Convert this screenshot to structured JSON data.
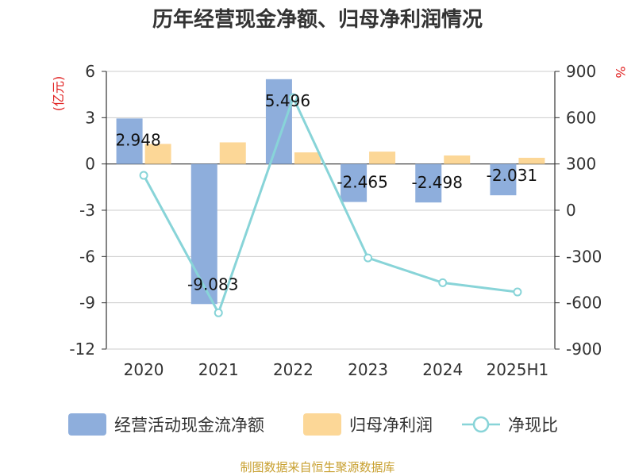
{
  "chart_data": {
    "type": "bar",
    "title": "历年经营现金净额、归母净利润情况",
    "categories": [
      "2020",
      "2021",
      "2022",
      "2023",
      "2024",
      "2025H1"
    ],
    "series": [
      {
        "name": "经营活动现金流净额",
        "type": "bar",
        "axis": "left",
        "color": "#8eaedc",
        "values": [
          2.948,
          -9.083,
          5.496,
          -2.465,
          -2.498,
          -2.031
        ],
        "labels": [
          "2.948",
          "-9.083",
          "5.496",
          "-2.465",
          "-2.498",
          "-2.031"
        ]
      },
      {
        "name": "归母净利润",
        "type": "bar",
        "axis": "left",
        "color": "#fcd797",
        "values": [
          1.3,
          1.4,
          0.75,
          0.8,
          0.55,
          0.4
        ]
      },
      {
        "name": "净现比",
        "type": "line",
        "axis": "right",
        "color": "#88d4d8",
        "values": [
          226,
          -665,
          730,
          -309,
          -470,
          -530
        ]
      }
    ],
    "y_left": {
      "unit": "(亿元)",
      "range": [
        -12,
        6
      ],
      "ticks": [
        "6",
        "3",
        "0",
        "-3",
        "-6",
        "-9",
        "-12"
      ]
    },
    "y_right": {
      "unit": "%",
      "range": [
        -900,
        900
      ],
      "ticks": [
        "900",
        "600",
        "300",
        "0",
        "-300",
        "-600",
        "-900"
      ]
    },
    "grid": true,
    "legend_position": "bottom"
  },
  "source": "制图数据来自恒生聚源数据库"
}
